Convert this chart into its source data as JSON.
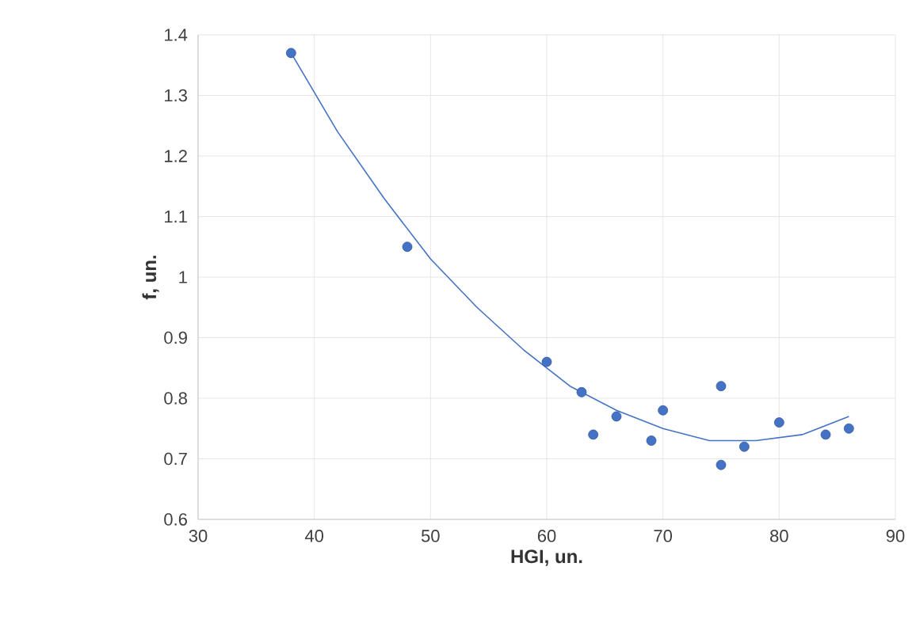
{
  "chart_data": {
    "type": "scatter",
    "xlabel": "HGI, un.",
    "ylabel": "f, un.",
    "xlim": [
      30,
      90
    ],
    "xticks": [
      30,
      40,
      50,
      60,
      70,
      80,
      90
    ],
    "ylim": [
      0.6,
      1.4
    ],
    "yticks": [
      0.6,
      0.7,
      0.8,
      0.9,
      1,
      1.1,
      1.2,
      1.3,
      1.4
    ],
    "grid": true,
    "series": [
      {
        "type": "scatter",
        "marker": "circle",
        "color": "#4472c4",
        "x": [
          38,
          48,
          60,
          63,
          64,
          66,
          69,
          70,
          75,
          75,
          77,
          80,
          84,
          86
        ],
        "values": [
          1.37,
          1.05,
          0.86,
          0.81,
          0.74,
          0.77,
          0.73,
          0.78,
          0.82,
          0.69,
          0.72,
          0.76,
          0.74,
          0.75
        ]
      },
      {
        "type": "line",
        "marker": "none",
        "line_style": "solid",
        "color": "#4472c4",
        "x": [
          38,
          42,
          46,
          50,
          54,
          58,
          62,
          66,
          70,
          74,
          78,
          82,
          86
        ],
        "values": [
          1.37,
          1.24,
          1.13,
          1.03,
          0.95,
          0.88,
          0.82,
          0.78,
          0.75,
          0.73,
          0.73,
          0.74,
          0.77
        ]
      }
    ]
  }
}
